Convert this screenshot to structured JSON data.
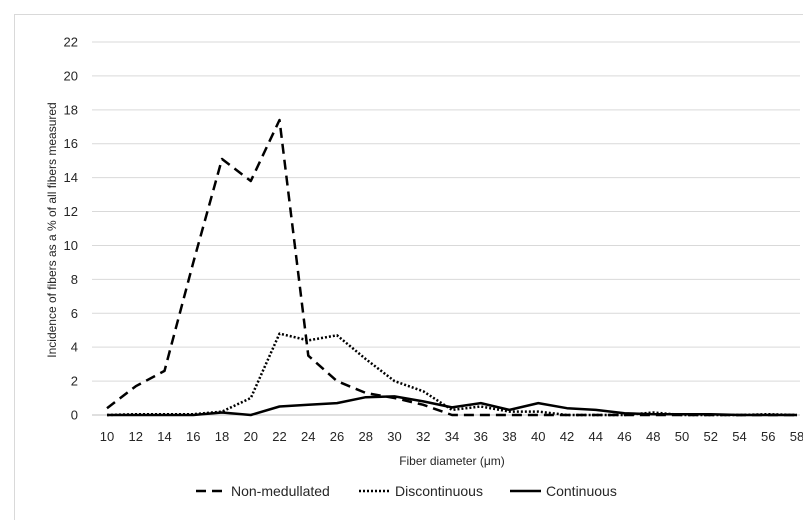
{
  "chart_data": {
    "type": "line",
    "title": "",
    "xlabel": "Fiber diameter (μm)",
    "ylabel": "Incidence of fibers as a % of all fibers measured",
    "x": [
      10,
      12,
      14,
      16,
      18,
      20,
      22,
      24,
      26,
      28,
      30,
      32,
      34,
      36,
      38,
      40,
      42,
      44,
      46,
      48,
      50,
      52,
      54,
      56,
      58
    ],
    "x_tick_labels": [
      "10",
      "12",
      "14",
      "16",
      "18",
      "20",
      "22",
      "24",
      "26",
      "28",
      "30",
      "32",
      "34",
      "36",
      "38",
      "40",
      "42",
      "44",
      "46",
      "48",
      "50",
      "52",
      "54",
      "56",
      "58"
    ],
    "y_tick_labels": [
      "0",
      "2",
      "4",
      "6",
      "8",
      "10",
      "12",
      "14",
      "16",
      "18",
      "20",
      "22"
    ],
    "ylim": [
      0,
      22
    ],
    "grid": "horizontal",
    "legend_position": "bottom",
    "series": [
      {
        "name": "Non-medullated",
        "style": "dashed",
        "color": "#000000",
        "values": [
          0.4,
          1.7,
          2.6,
          9.0,
          15.1,
          13.8,
          17.4,
          3.5,
          2.0,
          1.3,
          1.0,
          0.6,
          0.0,
          0.0,
          0.0,
          0.0,
          0.0,
          0.0,
          0.0,
          0.0,
          0.0,
          0.0,
          0.0,
          0.0,
          0.0
        ]
      },
      {
        "name": "Discontinuous",
        "style": "dotted",
        "color": "#000000",
        "values": [
          0.0,
          0.05,
          0.05,
          0.05,
          0.2,
          1.0,
          4.8,
          4.4,
          4.7,
          3.3,
          2.0,
          1.4,
          0.3,
          0.5,
          0.2,
          0.2,
          0.0,
          0.0,
          0.0,
          0.15,
          0.0,
          0.0,
          0.0,
          0.05,
          0.0
        ]
      },
      {
        "name": "Continuous",
        "style": "solid",
        "color": "#000000",
        "values": [
          0.0,
          0.0,
          0.0,
          0.0,
          0.15,
          0.0,
          0.5,
          0.6,
          0.7,
          1.05,
          1.1,
          0.8,
          0.45,
          0.7,
          0.3,
          0.7,
          0.4,
          0.3,
          0.1,
          0.05,
          0.05,
          0.05,
          0.0,
          0.0,
          0.0
        ]
      }
    ]
  },
  "colors": {
    "gridline": "#d9d9d9",
    "axis": "#bfbfbf",
    "text": "#262626",
    "line": "#000000"
  }
}
